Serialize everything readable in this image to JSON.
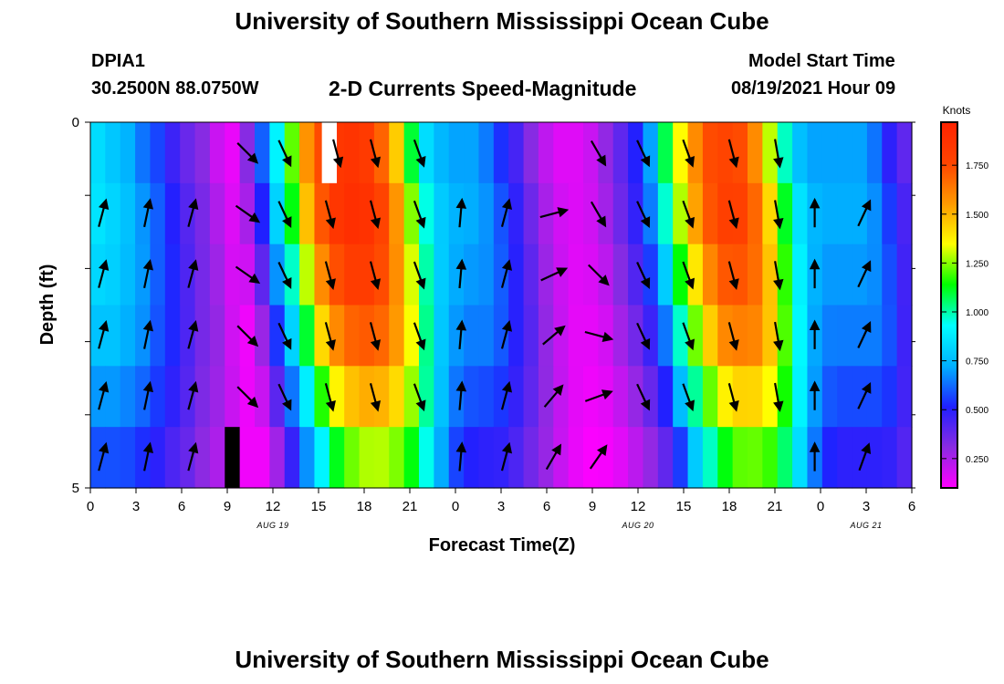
{
  "header": {
    "title": "University of Southern Mississippi Ocean Cube",
    "station": "DPIA1",
    "coordinates": "30.2500N  88.0750W",
    "subtitle": "2-D Currents Speed-Magnitude",
    "model_start_label": "Model Start Time",
    "model_start_value": "08/19/2021 Hour 09",
    "footer_title": "University of Southern Mississippi Ocean Cube"
  },
  "chart_data": {
    "type": "heatmap",
    "title": "2-D Currents Speed-Magnitude",
    "xlabel": "Forecast Time(Z)",
    "ylabel": "Depth (ft)",
    "x_tick_labels": [
      "0",
      "3",
      "6",
      "9",
      "12",
      "15",
      "18",
      "21",
      "0",
      "3",
      "6",
      "9",
      "12",
      "15",
      "18",
      "21",
      "0",
      "3",
      "6"
    ],
    "x_range_hours": [
      0,
      54
    ],
    "date_labels": [
      {
        "text": "AUG 19",
        "hour": 12
      },
      {
        "text": "AUG 20",
        "hour": 36
      },
      {
        "text": "AUG 21",
        "hour": 51
      }
    ],
    "y_tick_labels": [
      "0",
      "5"
    ],
    "y_range_ft": [
      0,
      5
    ],
    "depth_levels_ft": [
      0,
      1,
      2,
      3,
      4,
      5
    ],
    "time_hours": [
      0,
      1,
      2,
      3,
      4,
      5,
      6,
      7,
      8,
      9,
      10,
      11,
      12,
      13,
      14,
      15,
      16,
      17,
      18,
      19,
      20,
      21,
      22,
      23,
      24,
      25,
      26,
      27,
      28,
      29,
      30,
      31,
      32,
      33,
      34,
      35,
      36,
      37,
      38,
      39,
      40,
      41,
      42,
      43,
      44,
      45,
      46,
      47,
      48,
      49,
      50,
      51,
      52,
      53,
      54
    ],
    "speed_knots": [
      0.86,
      0.8,
      0.75,
      0.65,
      0.58,
      0.47,
      0.38,
      0.32,
      0.2,
      0.14,
      0.32,
      0.62,
      0.92,
      1.24,
      1.6,
      1.78,
      1.88,
      1.9,
      1.86,
      1.72,
      1.48,
      1.12,
      0.86,
      0.76,
      0.72,
      0.72,
      0.66,
      0.55,
      0.45,
      0.32,
      0.22,
      0.16,
      0.16,
      0.2,
      0.3,
      0.4,
      0.52,
      0.72,
      1.1,
      1.38,
      1.62,
      1.78,
      1.8,
      1.78,
      1.62,
      1.32,
      1.0,
      0.78,
      0.72,
      0.72,
      0.72,
      0.72,
      0.65,
      0.5,
      0.4
    ],
    "depth_speed_factor": [
      0.98,
      1.0,
      0.96,
      0.9,
      0.8,
      0.68
    ],
    "time_shift_per_depth_hours": 0.35,
    "colorbar": {
      "label": "Knots",
      "min": 0.1,
      "max": 1.97,
      "ticks": [
        "0.250",
        "0.500",
        "0.750",
        "1.000",
        "1.250",
        "1.500",
        "1.750"
      ],
      "colors": [
        "#ff00ff",
        "#8a2be2",
        "#2020ff",
        "#00b0ff",
        "#00ffff",
        "#00ff00",
        "#ffff00",
        "#ff9900",
        "#ff4400",
        "#ff2200"
      ]
    },
    "vectors": [
      {
        "t": 10,
        "d": 0,
        "dir": 135
      },
      {
        "t": 12.5,
        "d": 0,
        "dir": 155
      },
      {
        "t": 16,
        "d": 0,
        "dir": 165
      },
      {
        "t": 18.5,
        "d": 0,
        "dir": 165
      },
      {
        "t": 21.5,
        "d": 0,
        "dir": 160
      },
      {
        "t": 33.5,
        "d": 0,
        "dir": 150
      },
      {
        "t": 36.5,
        "d": 0,
        "dir": 155
      },
      {
        "t": 39.5,
        "d": 0,
        "dir": 160
      },
      {
        "t": 42.5,
        "d": 0,
        "dir": 165
      },
      {
        "t": 45.5,
        "d": 0,
        "dir": 170
      },
      {
        "t": 0.3,
        "d": 1,
        "dir": 15
      },
      {
        "t": 3.3,
        "d": 1,
        "dir": 12
      },
      {
        "t": 6.3,
        "d": 1,
        "dir": 15
      },
      {
        "t": 10,
        "d": 1,
        "dir": 125
      },
      {
        "t": 12.5,
        "d": 1,
        "dir": 155
      },
      {
        "t": 15.5,
        "d": 1,
        "dir": 165
      },
      {
        "t": 18.5,
        "d": 1,
        "dir": 165
      },
      {
        "t": 21.5,
        "d": 1,
        "dir": 160
      },
      {
        "t": 24.3,
        "d": 1,
        "dir": 5
      },
      {
        "t": 27.3,
        "d": 1,
        "dir": 15
      },
      {
        "t": 30.5,
        "d": 1,
        "dir": 75
      },
      {
        "t": 33.5,
        "d": 1,
        "dir": 150
      },
      {
        "t": 36.5,
        "d": 1,
        "dir": 155
      },
      {
        "t": 39.5,
        "d": 1,
        "dir": 160
      },
      {
        "t": 42.5,
        "d": 1,
        "dir": 165
      },
      {
        "t": 45.5,
        "d": 1,
        "dir": 170
      },
      {
        "t": 48,
        "d": 1,
        "dir": 0
      },
      {
        "t": 51.3,
        "d": 1,
        "dir": 25
      },
      {
        "t": 0.3,
        "d": 2,
        "dir": 15
      },
      {
        "t": 3.3,
        "d": 2,
        "dir": 12
      },
      {
        "t": 6.3,
        "d": 2,
        "dir": 15
      },
      {
        "t": 10,
        "d": 2,
        "dir": 125
      },
      {
        "t": 12.5,
        "d": 2,
        "dir": 155
      },
      {
        "t": 15.5,
        "d": 2,
        "dir": 165
      },
      {
        "t": 18.5,
        "d": 2,
        "dir": 165
      },
      {
        "t": 21.5,
        "d": 2,
        "dir": 160
      },
      {
        "t": 24.3,
        "d": 2,
        "dir": 5
      },
      {
        "t": 27.3,
        "d": 2,
        "dir": 15
      },
      {
        "t": 30.5,
        "d": 2,
        "dir": 65
      },
      {
        "t": 33.5,
        "d": 2,
        "dir": 135
      },
      {
        "t": 36.5,
        "d": 2,
        "dir": 155
      },
      {
        "t": 39.5,
        "d": 2,
        "dir": 160
      },
      {
        "t": 42.5,
        "d": 2,
        "dir": 165
      },
      {
        "t": 45.5,
        "d": 2,
        "dir": 170
      },
      {
        "t": 48,
        "d": 2,
        "dir": 0
      },
      {
        "t": 51.3,
        "d": 2,
        "dir": 25
      },
      {
        "t": 0.3,
        "d": 3,
        "dir": 15
      },
      {
        "t": 3.3,
        "d": 3,
        "dir": 12
      },
      {
        "t": 6.3,
        "d": 3,
        "dir": 15
      },
      {
        "t": 10,
        "d": 3,
        "dir": 135
      },
      {
        "t": 12.5,
        "d": 3,
        "dir": 155
      },
      {
        "t": 15.5,
        "d": 3,
        "dir": 165
      },
      {
        "t": 18.5,
        "d": 3,
        "dir": 165
      },
      {
        "t": 21.5,
        "d": 3,
        "dir": 160
      },
      {
        "t": 24.3,
        "d": 3,
        "dir": 5
      },
      {
        "t": 27.3,
        "d": 3,
        "dir": 15
      },
      {
        "t": 30.5,
        "d": 3,
        "dir": 50
      },
      {
        "t": 33.5,
        "d": 3,
        "dir": 105
      },
      {
        "t": 36.5,
        "d": 3,
        "dir": 155
      },
      {
        "t": 39.5,
        "d": 3,
        "dir": 160
      },
      {
        "t": 42.5,
        "d": 3,
        "dir": 165
      },
      {
        "t": 45.5,
        "d": 3,
        "dir": 170
      },
      {
        "t": 48,
        "d": 3,
        "dir": 0
      },
      {
        "t": 51.3,
        "d": 3,
        "dir": 25
      },
      {
        "t": 0.3,
        "d": 4,
        "dir": 15
      },
      {
        "t": 3.3,
        "d": 4,
        "dir": 12
      },
      {
        "t": 6.3,
        "d": 4,
        "dir": 15
      },
      {
        "t": 10,
        "d": 4,
        "dir": 135
      },
      {
        "t": 12.5,
        "d": 4,
        "dir": 155
      },
      {
        "t": 15.5,
        "d": 4,
        "dir": 165
      },
      {
        "t": 18.5,
        "d": 4,
        "dir": 165
      },
      {
        "t": 21.5,
        "d": 4,
        "dir": 160
      },
      {
        "t": 24.3,
        "d": 4,
        "dir": 5
      },
      {
        "t": 27.3,
        "d": 4,
        "dir": 15
      },
      {
        "t": 30.5,
        "d": 4,
        "dir": 40
      },
      {
        "t": 33.5,
        "d": 4,
        "dir": 70
      },
      {
        "t": 36.5,
        "d": 4,
        "dir": 155
      },
      {
        "t": 39.5,
        "d": 4,
        "dir": 160
      },
      {
        "t": 42.5,
        "d": 4,
        "dir": 165
      },
      {
        "t": 45.5,
        "d": 4,
        "dir": 170
      },
      {
        "t": 48,
        "d": 4,
        "dir": 0
      },
      {
        "t": 51.3,
        "d": 4,
        "dir": 25
      },
      {
        "t": 0.3,
        "d": 5,
        "dir": 15
      },
      {
        "t": 3.3,
        "d": 5,
        "dir": 12
      },
      {
        "t": 6.3,
        "d": 5,
        "dir": 15
      },
      {
        "t": 24.3,
        "d": 5,
        "dir": 5
      },
      {
        "t": 27.3,
        "d": 5,
        "dir": 15
      },
      {
        "t": 30.5,
        "d": 5,
        "dir": 30
      },
      {
        "t": 33.5,
        "d": 5,
        "dir": 35
      },
      {
        "t": 48,
        "d": 5,
        "dir": 0
      },
      {
        "t": 51.3,
        "d": 5,
        "dir": 20
      }
    ],
    "missing_cells": [
      {
        "t": 15.5,
        "d": 0,
        "color": "#ffffff"
      },
      {
        "t": 9,
        "d": 5,
        "color": "#000000"
      }
    ]
  }
}
